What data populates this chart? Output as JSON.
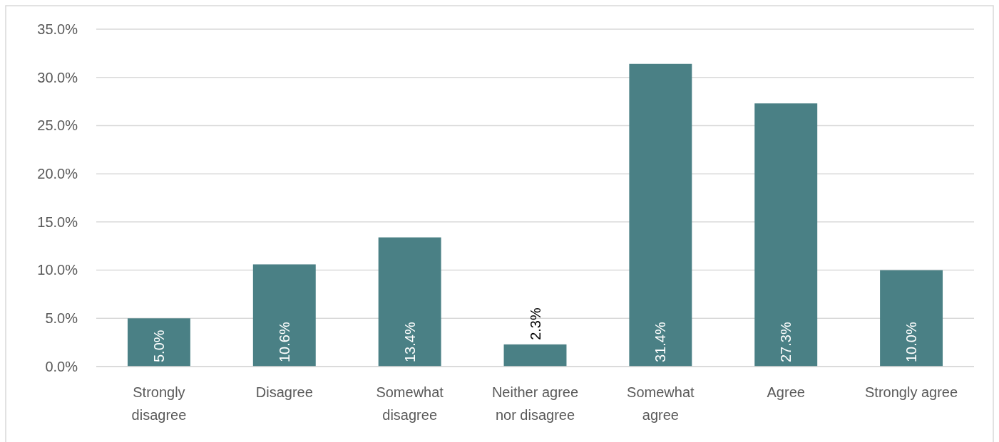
{
  "chart_data": {
    "type": "bar",
    "categories": [
      "Strongly disagree",
      "Disagree",
      "Somewhat disagree",
      "Neither agree nor disagree",
      "Somewhat agree",
      "Agree",
      "Strongly agree"
    ],
    "values": [
      5.0,
      10.6,
      13.4,
      2.3,
      31.4,
      27.3,
      10.0
    ],
    "value_labels": [
      "5.0%",
      "10.6%",
      "13.4%",
      "2.3%",
      "31.4%",
      "27.3%",
      "10.0%"
    ],
    "color": "#4a8085",
    "ylim": [
      0,
      35
    ],
    "yticks": [
      {
        "value": 0,
        "label": "0.0%"
      },
      {
        "value": 5,
        "label": "5.0%"
      },
      {
        "value": 10,
        "label": "10.0%"
      },
      {
        "value": 15,
        "label": "15.0%"
      },
      {
        "value": 20,
        "label": "20.0%"
      },
      {
        "value": 25,
        "label": "25.0%"
      },
      {
        "value": 30,
        "label": "30.0%"
      },
      {
        "value": 35,
        "label": "35.0%"
      }
    ],
    "grid": "y"
  }
}
